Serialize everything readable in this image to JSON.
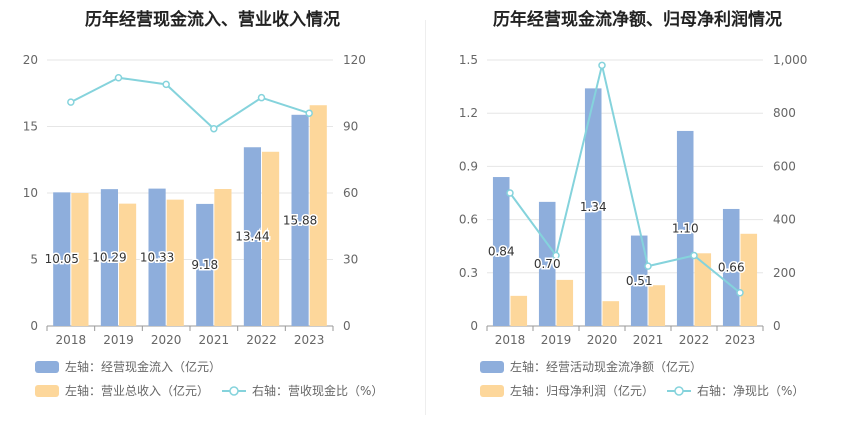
{
  "chart_data": [
    {
      "type": "bar",
      "title": "历年经营现金流入、营业收入情况",
      "categories": [
        "2018",
        "2019",
        "2020",
        "2021",
        "2022",
        "2023"
      ],
      "y_left": {
        "min": 0,
        "max": 20,
        "ticks": [
          "0",
          "5",
          "10",
          "15",
          "20"
        ]
      },
      "y_right": {
        "min": 0,
        "max": 120,
        "ticks": [
          "0",
          "30",
          "60",
          "90",
          "120"
        ]
      },
      "series": [
        {
          "name": "左轴：经营现金流入（亿元）",
          "type": "bar",
          "axis": "left",
          "color": "#8eaedc",
          "values": [
            10.05,
            10.29,
            10.33,
            9.18,
            13.44,
            15.88
          ],
          "labels": [
            "10.05",
            "10.29",
            "10.33",
            "9.18",
            "13.44",
            "15.88"
          ]
        },
        {
          "name": "左轴：营业总收入（亿元）",
          "type": "bar",
          "axis": "left",
          "color": "#fdd79b",
          "values": [
            10.0,
            9.2,
            9.5,
            10.3,
            13.1,
            16.6
          ]
        },
        {
          "name": "右轴：营收现金比（%）",
          "type": "line",
          "axis": "right",
          "color": "#85d3dc",
          "values": [
            101,
            112,
            109,
            89,
            103,
            96
          ]
        }
      ],
      "grid": true,
      "legend": "bottom"
    },
    {
      "type": "bar",
      "title": "历年经营现金流净额、归母净利润情况",
      "categories": [
        "2018",
        "2019",
        "2020",
        "2021",
        "2022",
        "2023"
      ],
      "y_left": {
        "min": 0,
        "max": 1.5,
        "ticks": [
          "0",
          "0.3",
          "0.6",
          "0.9",
          "1.2",
          "1.5"
        ]
      },
      "y_right": {
        "min": 0,
        "max": 1000,
        "ticks": [
          "0",
          "200",
          "400",
          "600",
          "800",
          "1,000"
        ]
      },
      "series": [
        {
          "name": "左轴：经营活动现金流净额（亿元）",
          "type": "bar",
          "axis": "left",
          "color": "#8eaedc",
          "values": [
            0.84,
            0.7,
            1.34,
            0.51,
            1.1,
            0.66
          ],
          "labels": [
            "0.84",
            "0.70",
            "1.34",
            "0.51",
            "1.10",
            "0.66"
          ]
        },
        {
          "name": "左轴：归母净利润（亿元）",
          "type": "bar",
          "axis": "left",
          "color": "#fdd79b",
          "values": [
            0.17,
            0.26,
            0.14,
            0.23,
            0.41,
            0.52
          ]
        },
        {
          "name": "右轴：净现比（%）",
          "type": "line",
          "axis": "right",
          "color": "#85d3dc",
          "values": [
            500,
            265,
            980,
            225,
            265,
            125
          ]
        }
      ],
      "grid": true,
      "legend": "bottom"
    }
  ]
}
